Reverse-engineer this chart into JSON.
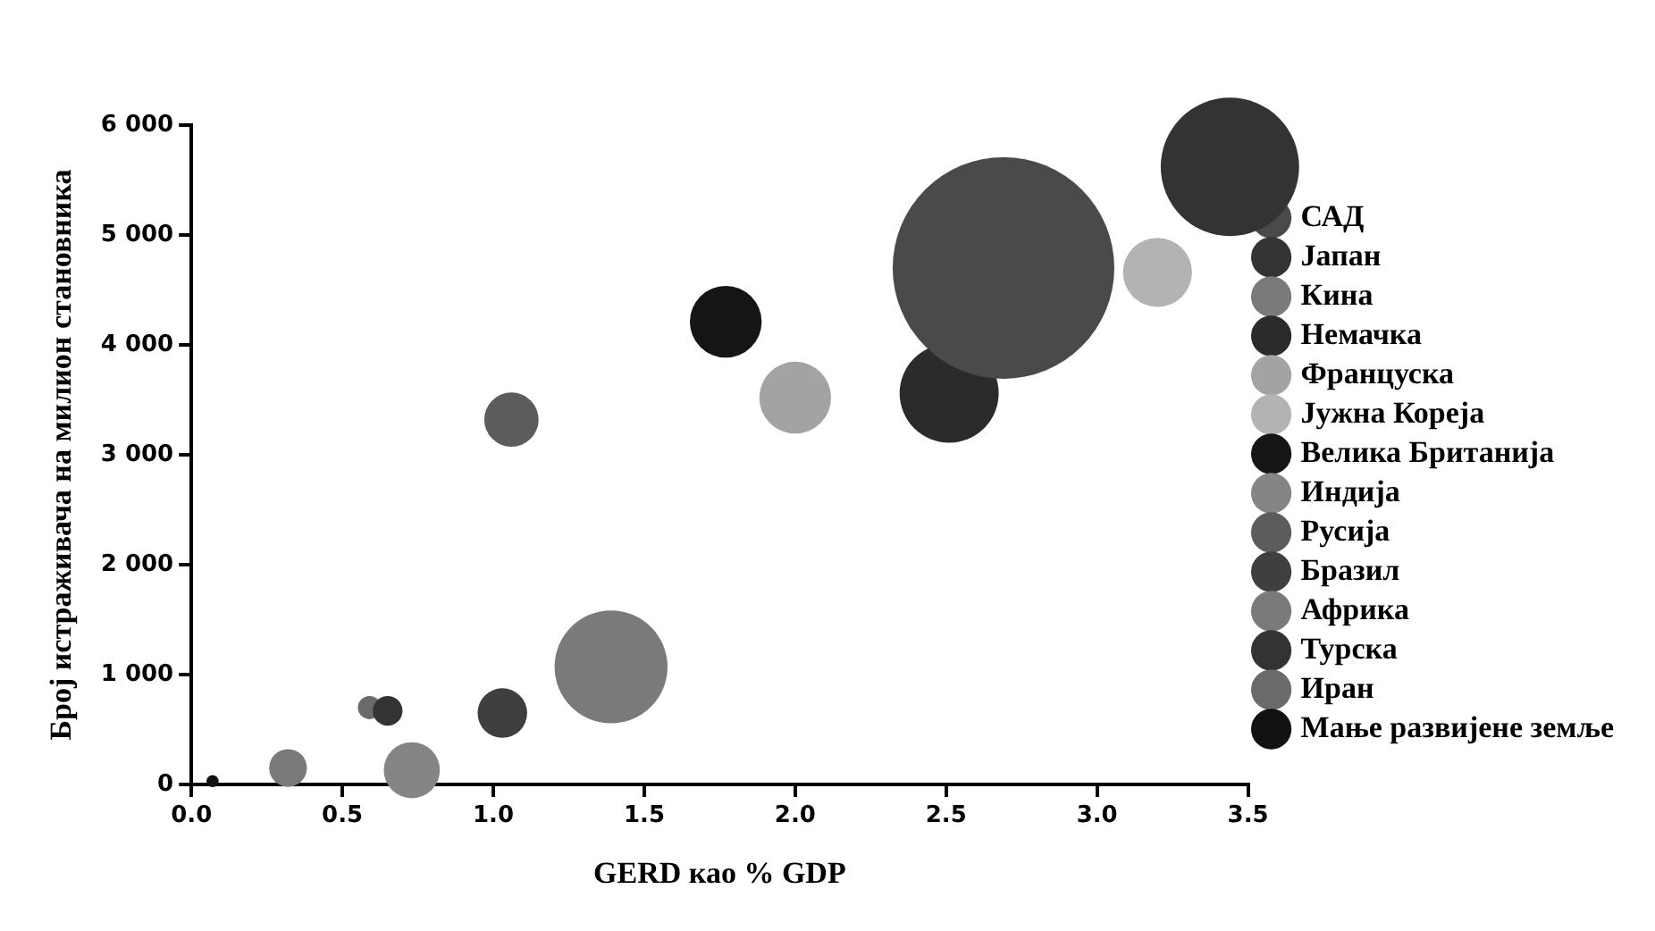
{
  "chart_data": {
    "type": "bubble",
    "xlabel": "GERD као % GDP",
    "ylabel": "Број истраживача на милион становника",
    "xlim": [
      0,
      3.5
    ],
    "xticks": [
      {
        "value": 0,
        "label": "0.0"
      },
      0.5,
      {
        "value": 1,
        "label": "1.0"
      },
      1.5,
      {
        "value": 2,
        "label": "2.0"
      },
      2.5,
      {
        "value": 3,
        "label": "3.0"
      },
      3.5
    ],
    "ylim": [
      0,
      6000
    ],
    "yticks": [
      {
        "value": 0,
        "label": "0"
      },
      {
        "value": 1000,
        "label": "1 000"
      },
      {
        "value": 2000,
        "label": "2 000"
      },
      {
        "value": 3000,
        "label": "3 000"
      },
      {
        "value": 4000,
        "label": "4 000"
      },
      {
        "value": 5000,
        "label": "5 000"
      },
      {
        "value": 6000,
        "label": "6 000"
      }
    ],
    "grid": false,
    "legend": "right",
    "series": [
      {
        "name": "САД",
        "color": "#4a4a4a",
        "x": [
          2.69
        ],
        "values": [
          4700
        ],
        "sizes": [
          1
        ]
      },
      {
        "name": "Јапан",
        "color": "#333333",
        "x": [
          3.44
        ],
        "values": [
          5620
        ],
        "sizes": [
          0.39
        ]
      },
      {
        "name": "Кина",
        "color": "#7a7a7a",
        "x": [
          1.39
        ],
        "values": [
          1070
        ],
        "sizes": [
          0.26
        ]
      },
      {
        "name": "Немачка",
        "color": "#2b2b2b",
        "x": [
          2.51
        ],
        "values": [
          3560
        ],
        "sizes": [
          0.2
        ]
      },
      {
        "name": "Француска",
        "color": "#a3a3a3",
        "x": [
          2.0
        ],
        "values": [
          3520
        ],
        "sizes": [
          0.105
        ]
      },
      {
        "name": "Јужна Кореја",
        "color": "#b3b3b3",
        "x": [
          3.2
        ],
        "values": [
          4660
        ],
        "sizes": [
          0.097
        ]
      },
      {
        "name": "Велика Британија",
        "color": "#151515",
        "x": [
          1.77
        ],
        "values": [
          4210
        ],
        "sizes": [
          0.105
        ]
      },
      {
        "name": "Индија",
        "color": "#858585",
        "x": [
          0.73
        ],
        "values": [
          130
        ],
        "sizes": [
          0.064
        ]
      },
      {
        "name": "Русија",
        "color": "#5c5c5c",
        "x": [
          1.06
        ],
        "values": [
          3320
        ],
        "sizes": [
          0.06
        ]
      },
      {
        "name": "Бразил",
        "color": "#3f3f3f",
        "x": [
          1.03
        ],
        "values": [
          650
        ],
        "sizes": [
          0.05
        ]
      },
      {
        "name": "Африка",
        "color": "#7a7a7a",
        "x": [
          0.32
        ],
        "values": [
          150
        ],
        "sizes": [
          0.029
        ]
      },
      {
        "name": "Турска",
        "color": "#333333",
        "x": [
          0.65
        ],
        "values": [
          670
        ],
        "sizes": [
          0.018
        ]
      },
      {
        "name": "Иран",
        "color": "#6a6a6a",
        "x": [
          0.59
        ],
        "values": [
          700
        ],
        "sizes": [
          0.011
        ]
      },
      {
        "name": "Мање развијене земље",
        "color": "#111111",
        "x": [
          0.07
        ],
        "values": [
          30
        ],
        "sizes": [
          0.003
        ]
      }
    ]
  }
}
